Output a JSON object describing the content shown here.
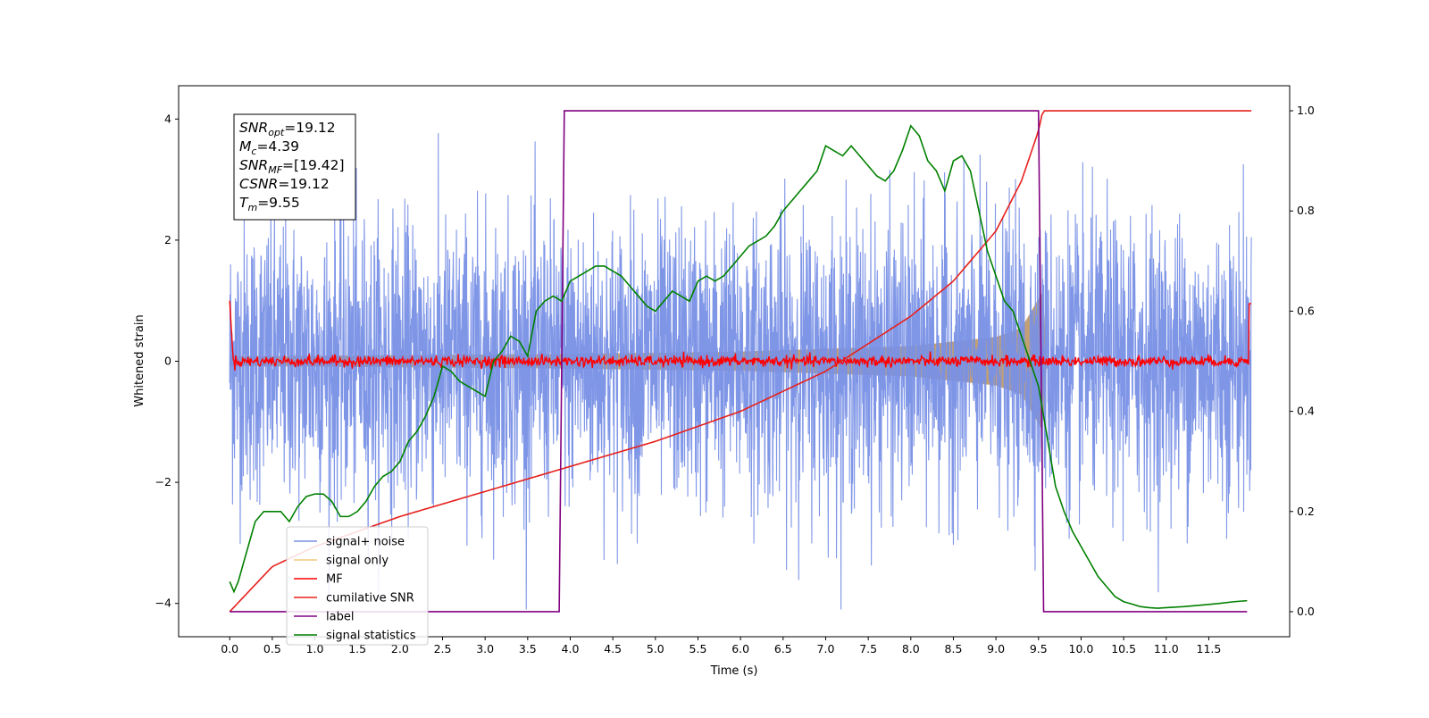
{
  "chart_data": {
    "type": "line",
    "title": "",
    "xlabel": "Time (s)",
    "ylabel": "Whitened strain",
    "y2label": "",
    "xlim": [
      -0.6,
      12.45
    ],
    "ylim": [
      -4.55,
      4.55
    ],
    "y2lim": [
      -0.05,
      1.05
    ],
    "grid": false,
    "legend_position": "lower-left",
    "x_ticks": [
      "0.0",
      "0.5",
      "1.0",
      "1.5",
      "2.0",
      "2.5",
      "3.0",
      "3.5",
      "4.0",
      "4.5",
      "5.0",
      "5.5",
      "6.0",
      "6.5",
      "7.0",
      "7.5",
      "8.0",
      "8.5",
      "9.0",
      "9.5",
      "10.0",
      "10.5",
      "11.0",
      "11.5"
    ],
    "y_ticks": [
      "−4",
      "−2",
      "0",
      "2",
      "4"
    ],
    "y2_ticks": [
      "0.0",
      "0.2",
      "0.4",
      "0.6",
      "0.8",
      "1.0"
    ],
    "info_box": [
      {
        "base": "SNR",
        "sub": "opt",
        "value": "=19.12"
      },
      {
        "base": "M",
        "sub": "c",
        "value": "=4.39"
      },
      {
        "base": "SNR",
        "sub": "MF",
        "value": "=[19.42]"
      },
      {
        "base": "CSNR",
        "sub": "",
        "value": "=19.12"
      },
      {
        "base": "T",
        "sub": "m",
        "value": "=9.55"
      }
    ],
    "series": [
      {
        "name": "signal+ noise",
        "color": "#7890e6",
        "axis": "left",
        "note_x_range": [
          0.0,
          12.0
        ],
        "amplitude_std": 1.0
      },
      {
        "name": "signal only",
        "color": "#f5c77a",
        "axis": "left",
        "envelope": {
          "x": [
            0.0,
            3.9,
            6.0,
            8.0,
            9.0,
            9.3,
            9.55,
            9.6,
            12.0
          ],
          "amp": [
            0.08,
            0.12,
            0.16,
            0.25,
            0.4,
            0.55,
            1.15,
            0.0,
            0.0
          ]
        }
      },
      {
        "name": "MF",
        "color": "#ff0000",
        "axis": "left",
        "baseline": 0.0
      },
      {
        "name": "cumilative SNR",
        "color": "#e6201c",
        "axis": "right",
        "x": [
          0.0,
          0.5,
          1.0,
          2.0,
          3.0,
          4.0,
          5.0,
          6.0,
          7.0,
          8.0,
          8.5,
          9.0,
          9.3,
          9.5,
          9.55,
          12.0
        ],
        "y": [
          0.0,
          0.09,
          0.13,
          0.19,
          0.24,
          0.29,
          0.34,
          0.4,
          0.48,
          0.59,
          0.66,
          0.76,
          0.86,
          0.96,
          1.0,
          1.0
        ]
      },
      {
        "name": "label",
        "color": "#800080",
        "axis": "right",
        "x": [
          0.0,
          3.87,
          3.93,
          9.5,
          9.56,
          11.95
        ],
        "y": [
          0.0,
          0.0,
          1.0,
          1.0,
          0.0,
          0.0
        ]
      },
      {
        "name": "signal statistics",
        "color": "#008000",
        "axis": "right",
        "x": [
          0.0,
          0.05,
          0.1,
          0.2,
          0.3,
          0.4,
          0.5,
          0.6,
          0.7,
          0.8,
          0.9,
          1.0,
          1.1,
          1.2,
          1.3,
          1.4,
          1.5,
          1.6,
          1.7,
          1.8,
          1.9,
          2.0,
          2.1,
          2.2,
          2.3,
          2.4,
          2.5,
          2.6,
          2.7,
          2.8,
          2.9,
          3.0,
          3.1,
          3.2,
          3.3,
          3.4,
          3.5,
          3.6,
          3.7,
          3.8,
          3.9,
          4.0,
          4.1,
          4.2,
          4.3,
          4.4,
          4.5,
          4.6,
          4.7,
          4.8,
          4.9,
          5.0,
          5.1,
          5.2,
          5.3,
          5.4,
          5.5,
          5.6,
          5.7,
          5.8,
          5.9,
          6.0,
          6.1,
          6.2,
          6.3,
          6.4,
          6.5,
          6.6,
          6.7,
          6.8,
          6.9,
          7.0,
          7.1,
          7.2,
          7.3,
          7.4,
          7.5,
          7.6,
          7.7,
          7.8,
          7.9,
          8.0,
          8.1,
          8.2,
          8.3,
          8.4,
          8.5,
          8.6,
          8.7,
          8.8,
          8.9,
          9.0,
          9.1,
          9.2,
          9.3,
          9.4,
          9.5,
          9.6,
          9.7,
          9.8,
          9.9,
          10.0,
          10.1,
          10.2,
          10.3,
          10.4,
          10.5,
          10.6,
          10.7,
          10.8,
          10.9,
          11.0,
          11.2,
          11.4,
          11.6,
          11.8,
          11.95
        ],
        "y": [
          0.06,
          0.04,
          0.06,
          0.12,
          0.18,
          0.2,
          0.2,
          0.2,
          0.18,
          0.21,
          0.23,
          0.235,
          0.235,
          0.22,
          0.19,
          0.19,
          0.2,
          0.22,
          0.25,
          0.27,
          0.28,
          0.3,
          0.34,
          0.36,
          0.39,
          0.43,
          0.49,
          0.48,
          0.46,
          0.45,
          0.44,
          0.43,
          0.5,
          0.52,
          0.55,
          0.54,
          0.51,
          0.6,
          0.62,
          0.63,
          0.62,
          0.66,
          0.67,
          0.68,
          0.69,
          0.69,
          0.68,
          0.67,
          0.65,
          0.63,
          0.61,
          0.6,
          0.62,
          0.64,
          0.63,
          0.62,
          0.66,
          0.67,
          0.66,
          0.67,
          0.69,
          0.71,
          0.73,
          0.74,
          0.75,
          0.77,
          0.8,
          0.82,
          0.84,
          0.86,
          0.88,
          0.93,
          0.92,
          0.91,
          0.93,
          0.91,
          0.89,
          0.87,
          0.86,
          0.88,
          0.92,
          0.97,
          0.95,
          0.9,
          0.88,
          0.84,
          0.9,
          0.91,
          0.88,
          0.8,
          0.72,
          0.67,
          0.62,
          0.6,
          0.55,
          0.5,
          0.45,
          0.35,
          0.25,
          0.2,
          0.16,
          0.13,
          0.1,
          0.07,
          0.05,
          0.03,
          0.02,
          0.015,
          0.01,
          0.008,
          0.007,
          0.008,
          0.01,
          0.013,
          0.016,
          0.02,
          0.022
        ]
      }
    ]
  }
}
